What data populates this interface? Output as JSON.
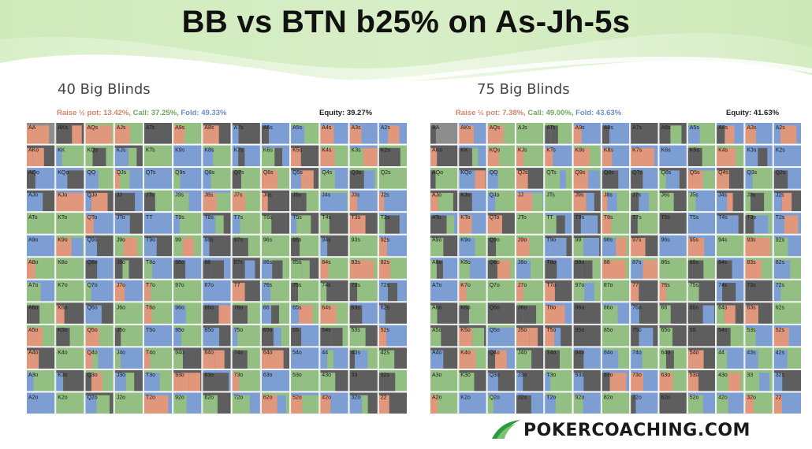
{
  "title": "BB vs BTN b25% on As-Jh-5s",
  "colors": {
    "raise": "#e1977b",
    "call": "#93bf82",
    "fold": "#7d9ed3",
    "check": "#5e5e5e",
    "blocked": "#8d8d8d"
  },
  "ranks": [
    "A",
    "K",
    "Q",
    "J",
    "T",
    "9",
    "8",
    "7",
    "6",
    "5",
    "4",
    "3",
    "2"
  ],
  "panels": [
    {
      "label": "40 Big Blinds",
      "stats": {
        "raise_label": "Raise ½ pot: 13.42%,",
        "call_label": "Call: 37.25%,",
        "fold_label": "Fold: 49.33%"
      },
      "equity": "Equity: 39.27%"
    },
    {
      "label": "75 Big Blinds",
      "stats": {
        "raise_label": "Raise ½ pot: 7.38%,",
        "call_label": "Call: 49.00%,",
        "fold_label": "Fold: 43.63%"
      },
      "equity": "Equity: 41.63%"
    }
  ],
  "chart_data": [
    {
      "type": "heatmap",
      "title": "40 Big Blinds",
      "legend": [
        "Raise ½ pot",
        "Call",
        "Fold"
      ],
      "totals": {
        "raise": 13.42,
        "call": 37.25,
        "fold": 49.33
      },
      "equity": 39.27
    },
    {
      "type": "heatmap",
      "title": "75 Big Blinds",
      "legend": [
        "Raise ½ pot",
        "Call",
        "Fold"
      ],
      "totals": {
        "raise": 7.38,
        "call": 49.0,
        "fold": 43.63
      },
      "equity": 41.63
    }
  ],
  "logo": {
    "text": "POKERCOACHING.COM",
    "icon": "logo-swoosh-icon"
  }
}
